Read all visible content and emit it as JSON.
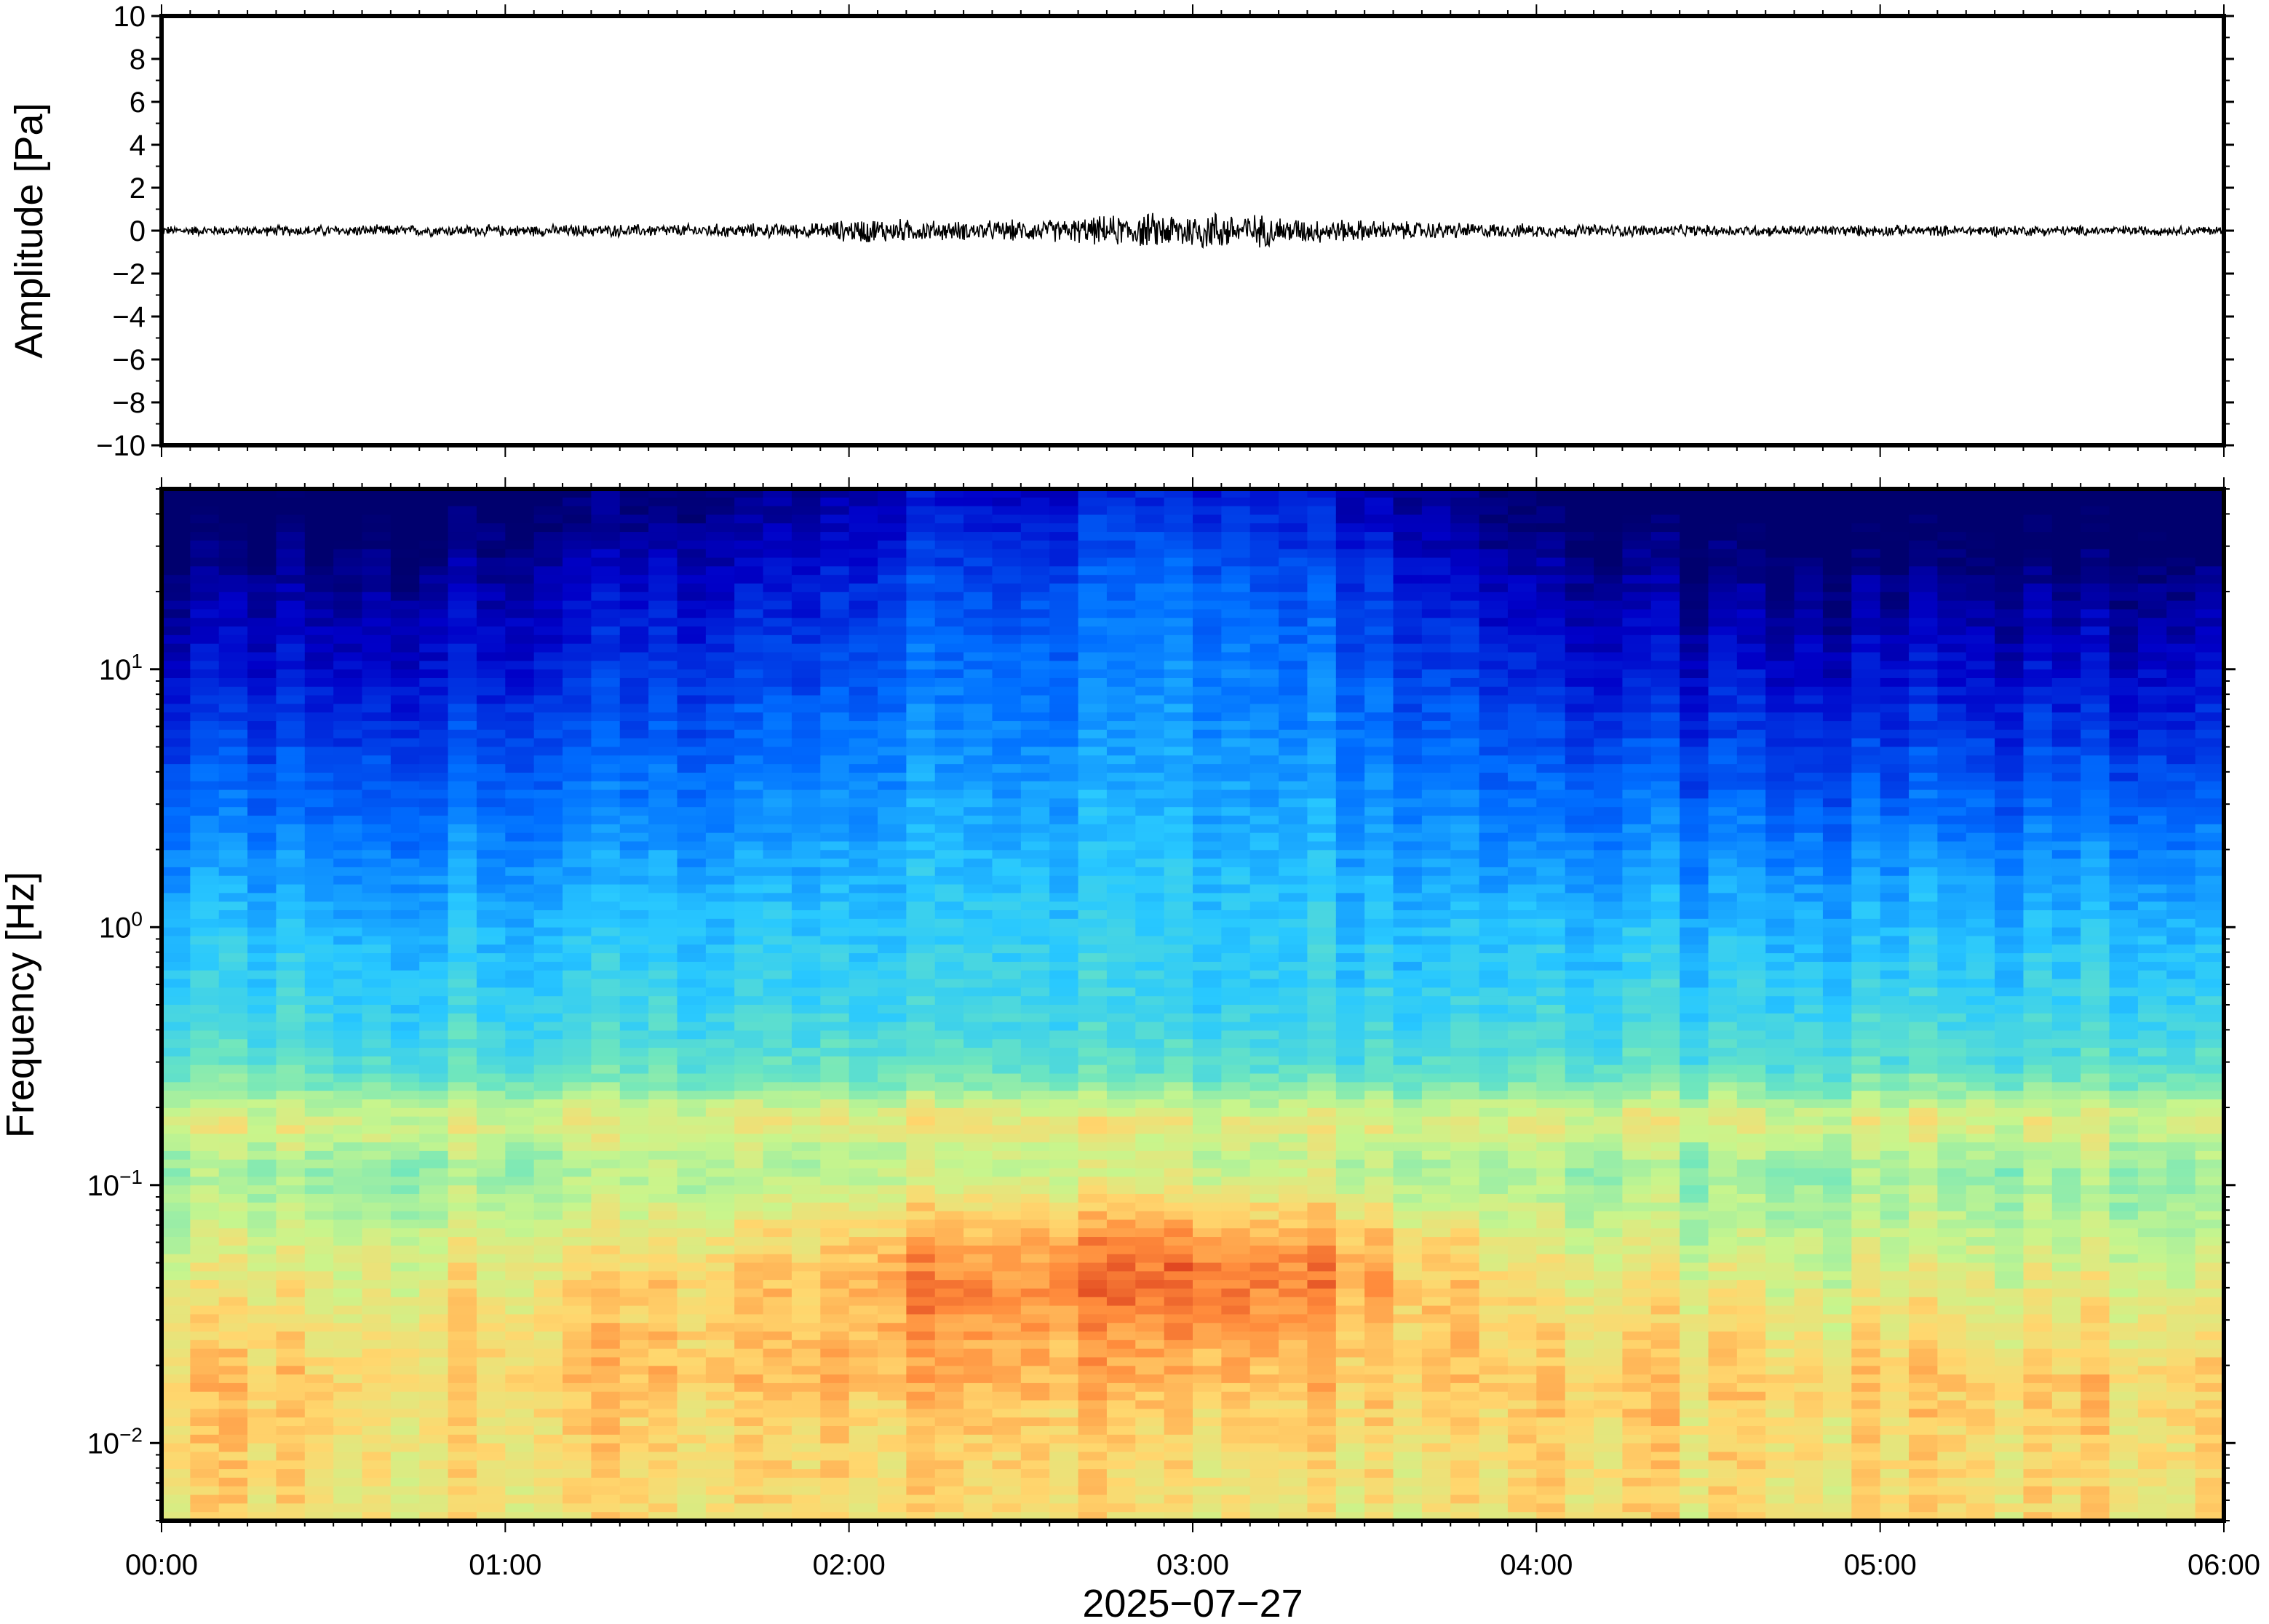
{
  "chart_data": [
    {
      "type": "line",
      "panel": "waveform",
      "ylabel": "Amplitude [Pa]",
      "ylim": [
        -10,
        10
      ],
      "yticks": [
        10,
        8,
        6,
        4,
        2,
        0,
        -2,
        -4,
        -6,
        -8,
        -10
      ],
      "ytick_labels": [
        "10",
        "8",
        "6",
        "4",
        "2",
        "0",
        "−2",
        "−4",
        "−6",
        "−8",
        "−10"
      ],
      "xlim_hours": [
        0,
        6
      ],
      "series": [
        {
          "envelope_hours": [
            0,
            0.5,
            1.0,
            1.5,
            1.9,
            2.05,
            2.3,
            2.6,
            2.85,
            3.05,
            3.3,
            3.6,
            4.0,
            4.5,
            5.0,
            6.0
          ],
          "envelope_pa": [
            0.25,
            0.3,
            0.3,
            0.35,
            0.4,
            0.7,
            0.5,
            0.6,
            0.9,
            1.1,
            0.7,
            0.5,
            0.35,
            0.3,
            0.3,
            0.25
          ],
          "color": "#000000"
        }
      ],
      "grid": false
    },
    {
      "type": "heatmap",
      "panel": "spectrogram",
      "ylabel": "Frequency [Hz]",
      "yscale": "log",
      "ylim": [
        0.005,
        50
      ],
      "yticks": [
        {
          "value": 10,
          "base": "10",
          "exp": "1"
        },
        {
          "value": 1,
          "base": "10",
          "exp": "0"
        },
        {
          "value": 0.1,
          "base": "10",
          "exp": "−1"
        },
        {
          "value": 0.01,
          "base": "10",
          "exp": "−2"
        }
      ],
      "xlim_hours": [
        0,
        6
      ],
      "xticks": [
        "00:00",
        "01:00",
        "02:00",
        "03:00",
        "04:00",
        "05:00",
        "06:00"
      ],
      "xlabel": "2025−07−27",
      "colormap": "jet",
      "activity_hours": [
        0,
        0.5,
        1.0,
        1.5,
        1.9,
        2.2,
        2.5,
        2.9,
        3.1,
        3.4,
        3.65,
        4.0,
        4.3,
        4.7,
        5.2,
        6.0
      ],
      "activity_level": [
        0.05,
        0.12,
        0.25,
        0.35,
        0.45,
        0.75,
        0.7,
        1.0,
        0.95,
        0.8,
        0.55,
        0.2,
        0.1,
        0.05,
        0.05,
        0.05
      ],
      "microseism_peak_hz": 0.18,
      "secondary_peak_hz": 0.05,
      "grid": false
    }
  ]
}
